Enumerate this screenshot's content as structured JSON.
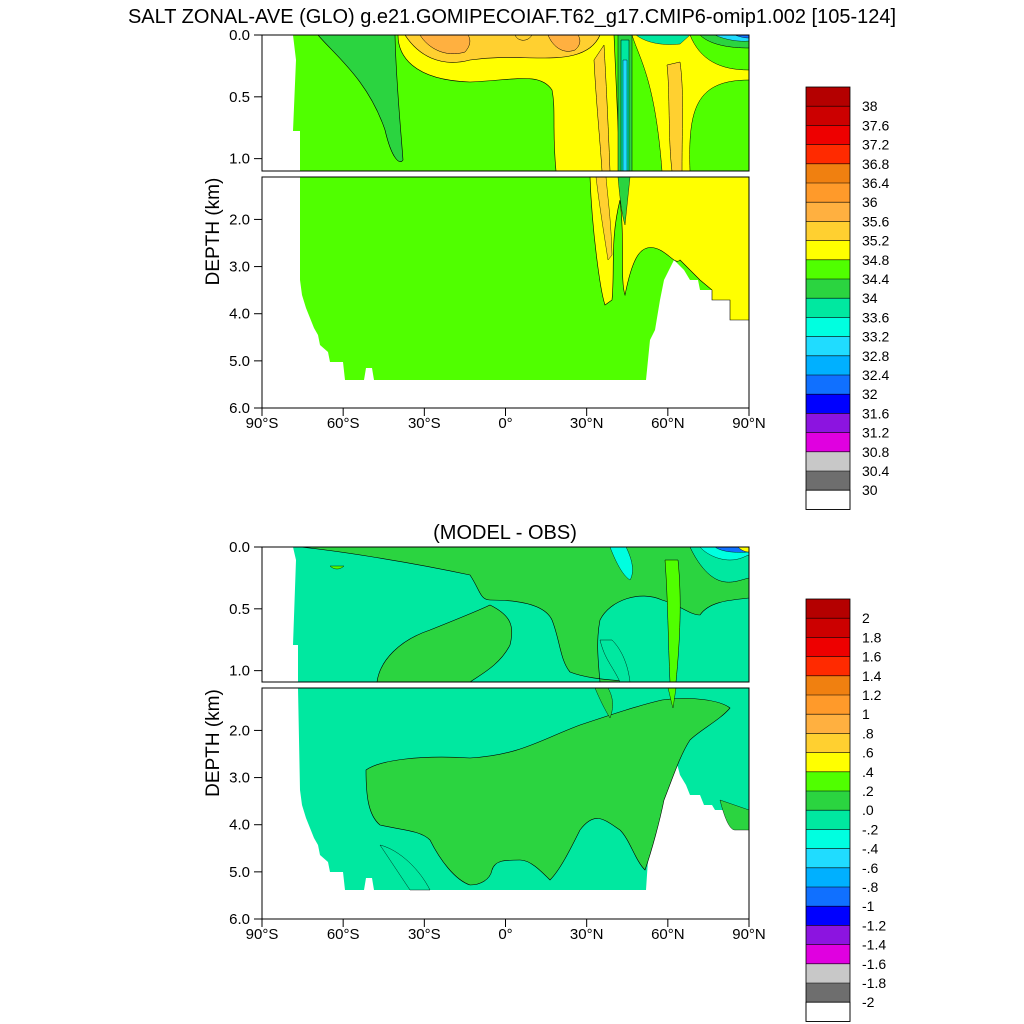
{
  "figure": {
    "title": "SALT ZONAL-AVE (GLO) g.e21.GOMIPECOIAF.T62_g17.CMIP6-omip1.002 [105-124]"
  },
  "chart_data": [
    {
      "type": "heatmap",
      "title": "",
      "xlabel": "",
      "ylabel": "DEPTH (km)",
      "xlim": [
        -90,
        90
      ],
      "ylim": [
        6.0,
        0.0
      ],
      "ylim_note_upper_panel": [
        1.1,
        0.0
      ],
      "x_tick_labels": [
        "90°S",
        "60°S",
        "30°S",
        "0°",
        "30°N",
        "60°N",
        "90°N"
      ],
      "y_tick_labels_upper": [
        "0.0",
        "0.5",
        "1.0"
      ],
      "y_tick_labels_lower": [
        "2.0",
        "3.0",
        "4.0",
        "5.0",
        "6.0"
      ],
      "grid": false,
      "legend_position": "right",
      "colorbar_labels": [
        "38",
        "37.6",
        "37.2",
        "36.8",
        "36.4",
        "36",
        "35.6",
        "35.2",
        "34.8",
        "34.4",
        "34",
        "33.6",
        "33.2",
        "32.8",
        "32.4",
        "32",
        "31.6",
        "31.2",
        "30.8",
        "30.4",
        "30"
      ],
      "colorbar_colors": [
        "#b40000",
        "#cc0000",
        "#ee0000",
        "#ff2a00",
        "#f08010",
        "#ff9a2a",
        "#ffb040",
        "#ffd030",
        "#ffff00",
        "#50ff00",
        "#2bd440",
        "#00e8a0",
        "#00ffe0",
        "#20dcff",
        "#00b0ff",
        "#1070ff",
        "#0000ff",
        "#8c14e0",
        "#e000e0",
        "#c8c8c8",
        "#6e6e6e",
        "#ffffff"
      ]
    },
    {
      "type": "heatmap",
      "title": "(MODEL - OBS)",
      "xlabel": "",
      "ylabel": "DEPTH (km)",
      "xlim": [
        -90,
        90
      ],
      "ylim": [
        6.0,
        0.0
      ],
      "x_tick_labels": [
        "90°S",
        "60°S",
        "30°S",
        "0°",
        "30°N",
        "60°N",
        "90°N"
      ],
      "y_tick_labels_upper": [
        "0.0",
        "0.5",
        "1.0"
      ],
      "y_tick_labels_lower": [
        "2.0",
        "3.0",
        "4.0",
        "5.0",
        "6.0"
      ],
      "grid": false,
      "legend_position": "right",
      "colorbar_labels": [
        "2",
        "1.8",
        "1.6",
        "1.4",
        "1.2",
        "1",
        ".8",
        ".6",
        ".4",
        ".2",
        ".0",
        "-.2",
        "-.4",
        "-.6",
        "-.8",
        "-1",
        "-1.2",
        "-1.4",
        "-1.6",
        "-1.8",
        "-2"
      ],
      "colorbar_colors": [
        "#b40000",
        "#cc0000",
        "#ee0000",
        "#ff2a00",
        "#f08010",
        "#ff9a2a",
        "#ffb040",
        "#ffd030",
        "#ffff00",
        "#50ff00",
        "#2bd440",
        "#00e8a0",
        "#00ffe0",
        "#20dcff",
        "#00b0ff",
        "#1070ff",
        "#0000ff",
        "#8c14e0",
        "#e000e0",
        "#c8c8c8",
        "#6e6e6e",
        "#ffffff"
      ]
    }
  ]
}
